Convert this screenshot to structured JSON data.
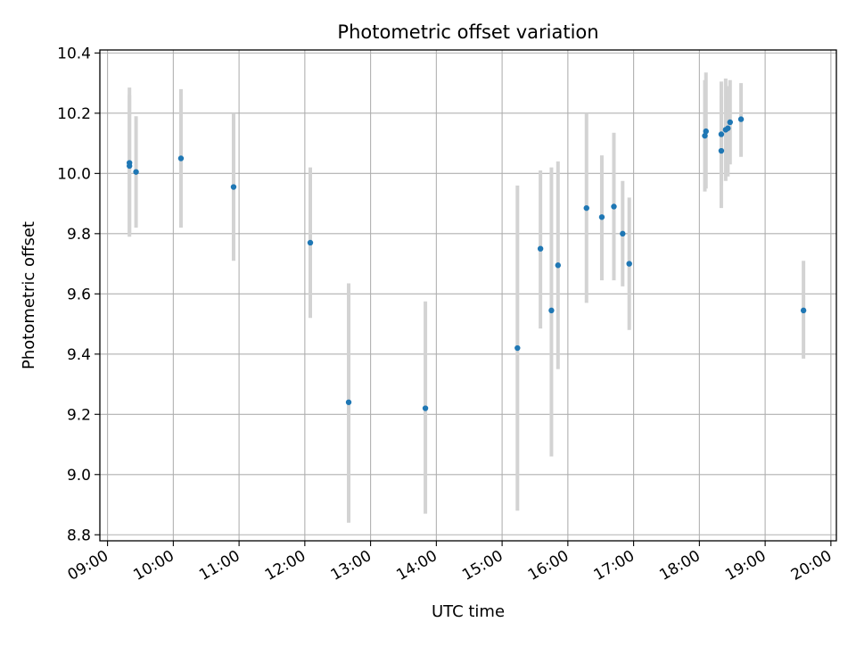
{
  "chart_data": {
    "type": "scatter",
    "title": "Photometric offset variation",
    "xlabel": "UTC time",
    "ylabel": "Photometric offset",
    "xlim": [
      "08:53",
      "20:05"
    ],
    "ylim": [
      8.78,
      10.41
    ],
    "x_ticks": [
      "09:00",
      "10:00",
      "11:00",
      "12:00",
      "13:00",
      "14:00",
      "15:00",
      "16:00",
      "17:00",
      "18:00",
      "19:00",
      "20:00"
    ],
    "y_ticks": [
      "8.8",
      "9.0",
      "9.2",
      "9.4",
      "9.6",
      "9.8",
      "10.0",
      "10.2",
      "10.4"
    ],
    "grid": true,
    "colors": {
      "point": "#1f77b4",
      "errorbar": "#d3d3d3",
      "grid": "#b0b0b0"
    },
    "points": [
      {
        "time": "09:20",
        "y": 10.035,
        "low": 9.79,
        "high": 10.285
      },
      {
        "time": "09:20",
        "y": 10.025,
        "low": 9.8,
        "high": 10.26
      },
      {
        "time": "09:26",
        "y": 10.005,
        "low": 9.82,
        "high": 10.19
      },
      {
        "time": "10:07",
        "y": 10.05,
        "low": 9.82,
        "high": 10.28
      },
      {
        "time": "10:55",
        "y": 9.955,
        "low": 9.71,
        "high": 10.2
      },
      {
        "time": "12:05",
        "y": 9.77,
        "low": 9.52,
        "high": 10.02
      },
      {
        "time": "12:40",
        "y": 9.24,
        "low": 8.84,
        "high": 9.635
      },
      {
        "time": "13:50",
        "y": 9.22,
        "low": 8.87,
        "high": 9.575
      },
      {
        "time": "15:14",
        "y": 9.42,
        "low": 8.88,
        "high": 9.96
      },
      {
        "time": "15:35",
        "y": 9.75,
        "low": 9.485,
        "high": 10.01
      },
      {
        "time": "15:45",
        "y": 9.545,
        "low": 9.06,
        "high": 10.02
      },
      {
        "time": "15:51",
        "y": 9.695,
        "low": 9.35,
        "high": 10.04
      },
      {
        "time": "16:17",
        "y": 9.885,
        "low": 9.57,
        "high": 10.2
      },
      {
        "time": "16:31",
        "y": 9.855,
        "low": 9.645,
        "high": 10.06
      },
      {
        "time": "16:42",
        "y": 9.89,
        "low": 9.645,
        "high": 10.135
      },
      {
        "time": "16:50",
        "y": 9.8,
        "low": 9.625,
        "high": 9.975
      },
      {
        "time": "16:56",
        "y": 9.7,
        "low": 9.48,
        "high": 9.92
      },
      {
        "time": "18:05",
        "y": 10.125,
        "low": 9.94,
        "high": 10.31
      },
      {
        "time": "18:06",
        "y": 10.14,
        "low": 9.95,
        "high": 10.335
      },
      {
        "time": "18:20",
        "y": 10.075,
        "low": 9.885,
        "high": 10.255
      },
      {
        "time": "18:20",
        "y": 10.13,
        "low": 9.96,
        "high": 10.305
      },
      {
        "time": "18:24",
        "y": 10.145,
        "low": 9.975,
        "high": 10.315
      },
      {
        "time": "18:26",
        "y": 10.15,
        "low": 9.99,
        "high": 10.29
      },
      {
        "time": "18:28",
        "y": 10.17,
        "low": 10.03,
        "high": 10.31
      },
      {
        "time": "18:38",
        "y": 10.18,
        "low": 10.055,
        "high": 10.3
      },
      {
        "time": "19:35",
        "y": 9.545,
        "low": 9.385,
        "high": 9.71
      }
    ]
  }
}
